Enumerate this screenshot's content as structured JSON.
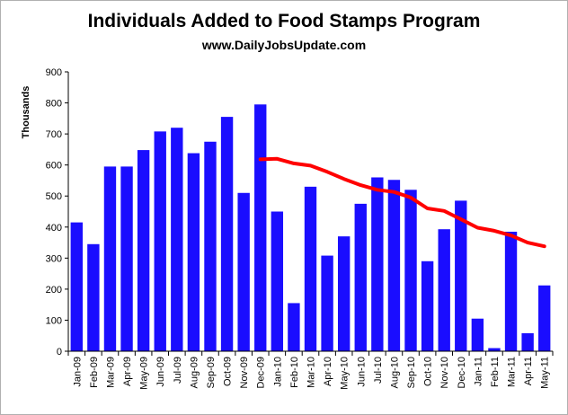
{
  "chart_data": {
    "type": "bar",
    "title": "Individuals Added to Food Stamps Program",
    "subtitle": "www.DailyJobsUpdate.com",
    "xlabel": "",
    "ylabel": "Thousands",
    "ylim": [
      0,
      900
    ],
    "yticks": [
      "0",
      "100",
      "200",
      "300",
      "400",
      "500",
      "600",
      "700",
      "800",
      "900"
    ],
    "categories": [
      "Jan-09",
      "Feb-09",
      "Mar-09",
      "Apr-09",
      "May-09",
      "Jun-09",
      "Jul-09",
      "Aug-09",
      "Sep-09",
      "Oct-09",
      "Nov-09",
      "Dec-09",
      "Jan-10",
      "Feb-10",
      "Mar-10",
      "Apr-10",
      "May-10",
      "Jun-10",
      "Jul-10",
      "Aug-10",
      "Sep-10",
      "Oct-10",
      "Nov-10",
      "Dec-10",
      "Jan-11",
      "Feb-11",
      "Mar-11",
      "Apr-11",
      "May-11"
    ],
    "series": [
      {
        "kind": "bar",
        "color": "#1a0dff",
        "values": [
          415,
          345,
          595,
          595,
          648,
          708,
          720,
          638,
          675,
          755,
          510,
          795,
          450,
          155,
          530,
          308,
          370,
          475,
          560,
          552,
          520,
          290,
          393,
          485,
          105,
          10,
          385,
          58,
          212
        ]
      },
      {
        "kind": "line",
        "color": "#ff0000",
        "values": [
          null,
          null,
          null,
          null,
          null,
          null,
          null,
          null,
          null,
          null,
          null,
          618,
          620,
          605,
          598,
          578,
          555,
          535,
          520,
          513,
          495,
          460,
          452,
          425,
          398,
          388,
          373,
          350,
          338
        ]
      }
    ],
    "grid": false,
    "legend": "none"
  }
}
